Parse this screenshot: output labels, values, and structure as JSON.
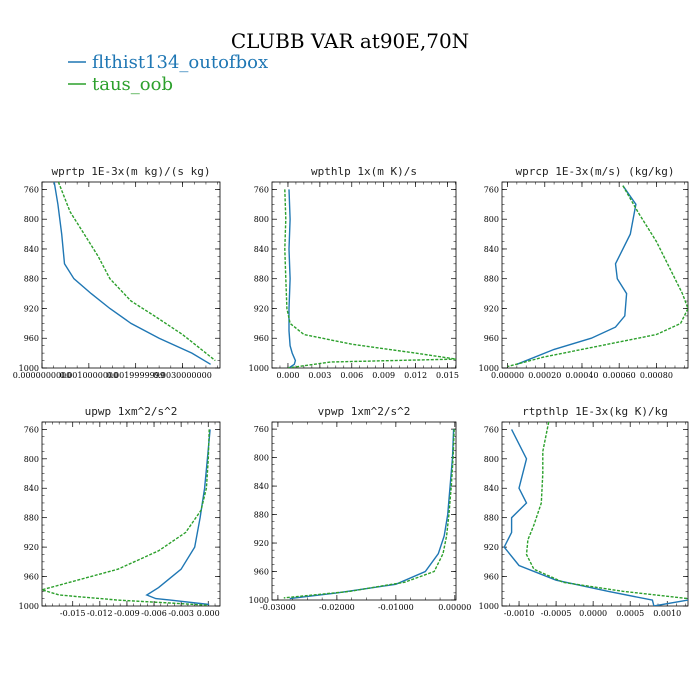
{
  "figure": {
    "title": "CLUBB VAR at90E,70N",
    "legend": [
      {
        "label": "flthist134_outofbox",
        "color": "#1f77b4",
        "style": "solid"
      },
      {
        "label": "taus_oob",
        "color": "#2ca02c",
        "style": "dashed"
      }
    ]
  },
  "chart_data": [
    {
      "type": "line",
      "title": "wprtp  1E-3x(m kg)/(s kg)",
      "ylim": [
        1000,
        750
      ],
      "yticks": [
        760,
        800,
        840,
        880,
        920,
        960,
        1000
      ],
      "xlim": [
        0,
        0.0038
      ],
      "xticks": [
        0,
        0.001,
        0.002,
        0.003
      ],
      "xticklabels": [
        "0.0000000000",
        "0.0010000000",
        "0.0019999999",
        "0.0030000000"
      ],
      "series": [
        {
          "name": "flthist134_outofbox",
          "x": [
            0.00026,
            0.00034,
            0.00042,
            0.00048,
            0.00068,
            0.00105,
            0.00145,
            0.0019,
            0.0025,
            0.0032,
            0.0036
          ],
          "y": [
            750,
            780,
            820,
            860,
            880,
            900,
            920,
            940,
            960,
            980,
            995
          ]
        },
        {
          "name": "taus_oob",
          "x": [
            0.00035,
            0.0006,
            0.0009,
            0.0012,
            0.00145,
            0.0019,
            0.0024,
            0.003,
            0.0034,
            0.0037
          ],
          "y": [
            750,
            790,
            820,
            850,
            880,
            910,
            930,
            955,
            975,
            990
          ]
        }
      ]
    },
    {
      "type": "line",
      "title": "wpthlp  1x(m K)/s",
      "ylim": [
        1000,
        750
      ],
      "yticks": [
        760,
        800,
        840,
        880,
        920,
        960,
        1000
      ],
      "xlim": [
        -0.0015,
        0.0158
      ],
      "xticks": [
        0,
        0.003,
        0.006,
        0.009,
        0.012,
        0.015
      ],
      "xticklabels": [
        "0.000",
        "0.003",
        "0.006",
        "0.009",
        "0.012",
        "0.015"
      ],
      "series": [
        {
          "name": "flthist134_outofbox",
          "x": [
            0.0001,
            0.0002,
            0.0001,
            0.0002,
            0.0001,
            0.0001,
            0.0002,
            0.0004,
            0.0007,
            0.0006,
            0.0003,
            0.0001
          ],
          "y": [
            760,
            800,
            840,
            880,
            920,
            950,
            970,
            980,
            990,
            995,
            998,
            1000
          ]
        },
        {
          "name": "taus_oob",
          "x": [
            -0.0003,
            -0.0002,
            -0.0003,
            -0.0002,
            -0.0001,
            0.0002,
            0.0015,
            0.006,
            0.012,
            0.0158,
            0.004,
            0.0
          ],
          "y": [
            760,
            800,
            840,
            880,
            920,
            940,
            955,
            968,
            980,
            988,
            992,
            1000
          ]
        }
      ]
    },
    {
      "type": "line",
      "title": "wprcp  1E-3x(m/s) (kg/kg)",
      "ylim": [
        1000,
        750
      ],
      "yticks": [
        760,
        800,
        840,
        880,
        920,
        960,
        1000
      ],
      "xlim": [
        -3e-05,
        0.00097
      ],
      "xticks": [
        0,
        0.0002,
        0.0004,
        0.0006,
        0.0008
      ],
      "xticklabels": [
        "0.00000",
        "0.00020",
        "0.00040",
        "0.00060",
        "0.00080"
      ],
      "series": [
        {
          "name": "flthist134_outofbox",
          "x": [
            0.00062,
            0.00069,
            0.00066,
            0.00058,
            0.00059,
            0.00064,
            0.00063,
            0.00058,
            0.00045,
            0.00025,
            5e-05
          ],
          "y": [
            755,
            780,
            820,
            860,
            880,
            900,
            930,
            945,
            960,
            975,
            995
          ]
        },
        {
          "name": "taus_oob",
          "x": [
            0.00062,
            0.0007,
            0.0008,
            0.00088,
            0.00094,
            0.00097,
            0.00093,
            0.0008,
            0.0005,
            0.0002,
            0.0
          ],
          "y": [
            755,
            790,
            830,
            870,
            900,
            920,
            940,
            955,
            970,
            985,
            998
          ]
        }
      ]
    },
    {
      "type": "line",
      "title": "upwp  1xm^2/s^2",
      "ylim": [
        1000,
        750
      ],
      "yticks": [
        760,
        800,
        840,
        880,
        920,
        960,
        1000
      ],
      "xlim": [
        -0.0184,
        0.0013
      ],
      "xticks": [
        -0.015,
        -0.012,
        -0.009,
        -0.006,
        -0.003,
        0.0
      ],
      "xticklabels": [
        "-0.015",
        "-0.012",
        "-0.009",
        "-0.006",
        "-0.003",
        "0.000"
      ],
      "series": [
        {
          "name": "flthist134_outofbox",
          "x": [
            0.0002,
            -0.0001,
            -0.0004,
            -0.0009,
            -0.0015,
            -0.003,
            -0.0045,
            -0.0055,
            -0.0068,
            -0.0058,
            -0.0042,
            0.0001
          ],
          "y": [
            760,
            800,
            840,
            880,
            920,
            950,
            965,
            975,
            985,
            990,
            992,
            998
          ]
        },
        {
          "name": "taus_oob",
          "x": [
            0.0001,
            0.0,
            -0.0002,
            -0.0008,
            -0.0025,
            -0.0055,
            -0.01,
            -0.0184,
            -0.0165,
            -0.01,
            -0.004,
            0.0
          ],
          "y": [
            760,
            800,
            840,
            870,
            900,
            925,
            950,
            978,
            985,
            992,
            996,
            999
          ]
        }
      ]
    },
    {
      "type": "line",
      "title": "vpwp  1xm^2/s^2",
      "ylim": [
        1000,
        750
      ],
      "yticks": [
        760,
        800,
        840,
        880,
        920,
        960,
        1000
      ],
      "xlim": [
        -0.031,
        0.0002
      ],
      "xticks": [
        -0.03,
        -0.02,
        -0.01,
        0.0
      ],
      "xticklabels": [
        "-0.03000",
        "-0.02000",
        "-0.01000",
        "0.00000"
      ],
      "series": [
        {
          "name": "flthist134_outofbox",
          "x": [
            -0.0002,
            -0.0004,
            -0.0008,
            -0.0012,
            -0.0018,
            -0.0028,
            -0.005,
            -0.01,
            -0.02,
            -0.028
          ],
          "y": [
            760,
            800,
            840,
            880,
            910,
            935,
            960,
            978,
            990,
            998
          ]
        },
        {
          "name": "taus_oob",
          "x": [
            -0.0001,
            -0.0003,
            -0.0006,
            -0.001,
            -0.0014,
            -0.002,
            -0.0035,
            -0.0085,
            -0.018,
            -0.029
          ],
          "y": [
            760,
            800,
            840,
            880,
            910,
            935,
            960,
            975,
            988,
            997
          ]
        }
      ]
    },
    {
      "type": "line",
      "title": "rtpthlp  1E-3x(kg K)/kg",
      "ylim": [
        1000,
        750
      ],
      "yticks": [
        760,
        800,
        840,
        880,
        920,
        960,
        1000
      ],
      "xlim": [
        -0.00123,
        0.00128
      ],
      "xticks": [
        -0.001,
        -0.0005,
        0.0,
        0.0005,
        0.001
      ],
      "xticklabels": [
        "-0.0010",
        "-0.0005",
        "0.0000",
        "0.0005",
        "0.0010"
      ],
      "series": [
        {
          "name": "flthist134_outofbox",
          "x": [
            -0.0011,
            -0.0009,
            -0.001,
            -0.0009,
            -0.0011,
            -0.0011,
            -0.0012,
            -0.001,
            -0.0005,
            0.0002,
            0.0008,
            0.00082,
            0.00128
          ],
          "y": [
            760,
            800,
            840,
            860,
            880,
            900,
            920,
            945,
            965,
            980,
            992,
            1000,
            992
          ]
        },
        {
          "name": "taus_oob",
          "x": [
            -0.0006,
            -0.00068,
            -0.00068,
            -0.0007,
            -0.0008,
            -0.00088,
            -0.0009,
            -0.0008,
            -0.0004,
            0.0004,
            0.00128
          ],
          "y": [
            750,
            790,
            820,
            860,
            890,
            910,
            930,
            950,
            968,
            980,
            990
          ]
        }
      ]
    }
  ]
}
